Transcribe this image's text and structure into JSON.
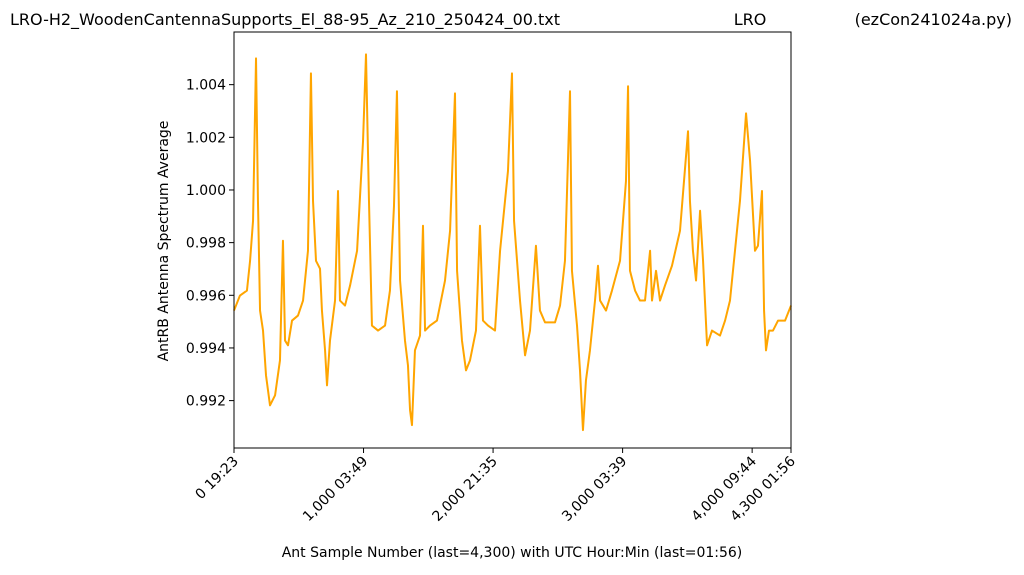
{
  "chart_data": {
    "type": "line",
    "title": "LRO-H2_WoodenCantennaSupports_El_88-95_Az_210_250424_00.txt",
    "subtitle": "LRO",
    "annotation": "(ezCon241024a.py)",
    "xlabel": "Ant Sample Number (last=4,300) with UTC Hour:Min (last=01:56)",
    "ylabel": "AntRB Antenna Spectrum Average",
    "color": "#ffa500",
    "xlim": [
      0,
      4300
    ],
    "ylim": [
      0.9902,
      1.006
    ],
    "xticks": [
      {
        "value": 0,
        "label": "0  19:23"
      },
      {
        "value": 1000,
        "label": "1,000  03:49"
      },
      {
        "value": 2000,
        "label": "2,000  21:35"
      },
      {
        "value": 3000,
        "label": "3,000  03:39"
      },
      {
        "value": 4000,
        "label": "4,000  09:44"
      },
      {
        "value": 4300,
        "label": "4,300  01:56"
      }
    ],
    "yticks": [
      0.992,
      0.994,
      0.996,
      0.998,
      {
        "value": 1.0,
        "label": "1.000"
      },
      1.002,
      1.004
    ],
    "x": [
      0,
      46,
      100,
      124,
      147,
      170,
      185,
      201,
      224,
      247,
      278,
      317,
      355,
      378,
      394,
      417,
      448,
      494,
      533,
      571,
      594,
      610,
      633,
      664,
      679,
      703,
      718,
      741,
      780,
      803,
      818,
      857,
      896,
      950,
      996,
      1019,
      1042,
      1065,
      1112,
      1166,
      1204,
      1235,
      1258,
      1282,
      1320,
      1343,
      1359,
      1374,
      1397,
      1436,
      1459,
      1475,
      1513,
      1567,
      1629,
      1668,
      1706,
      1722,
      1760,
      1791,
      1822,
      1868,
      1899,
      1922,
      1961,
      2015,
      2054,
      2115,
      2146,
      2162,
      2208,
      2247,
      2285,
      2331,
      2362,
      2401,
      2478,
      2517,
      2555,
      2594,
      2609,
      2648,
      2671,
      2694,
      2717,
      2748,
      2787,
      2810,
      2826,
      2872,
      2918,
      2980,
      3026,
      3042,
      3057,
      3096,
      3134,
      3173,
      3212,
      3227,
      3258,
      3289,
      3327,
      3381,
      3443,
      3505,
      3520,
      3543,
      3567,
      3598,
      3621,
      3652,
      3690,
      3752,
      3791,
      3829,
      3906,
      3953,
      3984,
      4022,
      4045,
      4076,
      4092,
      4107,
      4130,
      4161,
      4200,
      4254,
      4300
    ],
    "values": [
      0.99542,
      0.99599,
      0.99618,
      0.99731,
      0.99883,
      1.005,
      0.99958,
      0.99542,
      0.99466,
      0.99296,
      0.99182,
      0.9922,
      0.99353,
      0.99807,
      0.99428,
      0.9941,
      0.99504,
      0.99523,
      0.9958,
      0.99769,
      1.00443,
      0.99958,
      0.99731,
      0.99701,
      0.99542,
      0.99391,
      0.99258,
      0.99428,
      0.9958,
      0.99996,
      0.9958,
      0.99561,
      0.99637,
      0.99769,
      1.00185,
      1.00515,
      0.99958,
      0.99485,
      0.99466,
      0.99485,
      0.99618,
      0.99939,
      1.00375,
      0.99656,
      0.99428,
      0.99334,
      0.99164,
      0.99107,
      0.99391,
      0.99447,
      0.99864,
      0.99466,
      0.99485,
      0.99504,
      0.99656,
      0.99845,
      1.00367,
      0.99693,
      0.99428,
      0.99315,
      0.99353,
      0.99466,
      0.99864,
      0.99504,
      0.99485,
      0.99466,
      0.99769,
      1.00072,
      1.00443,
      0.99883,
      0.9958,
      0.99372,
      0.99466,
      0.99788,
      0.99542,
      0.99497,
      0.99497,
      0.99561,
      0.99731,
      1.00375,
      0.99693,
      0.99485,
      0.99315,
      0.99088,
      0.99277,
      0.99391,
      0.9958,
      0.99712,
      0.9958,
      0.99542,
      0.99618,
      0.99731,
      1.00034,
      1.00394,
      0.99693,
      0.99618,
      0.9958,
      0.9958,
      0.99769,
      0.9958,
      0.99693,
      0.9958,
      0.99637,
      0.99712,
      0.99845,
      1.00223,
      0.99958,
      0.99769,
      0.99656,
      0.99921,
      0.99731,
      0.9941,
      0.99466,
      0.99447,
      0.99504,
      0.9958,
      0.99958,
      1.00291,
      1.0011,
      0.99769,
      0.99788,
      0.99996,
      0.99542,
      0.99391,
      0.99466,
      0.99466,
      0.99504,
      0.99504,
      0.99561
    ]
  }
}
